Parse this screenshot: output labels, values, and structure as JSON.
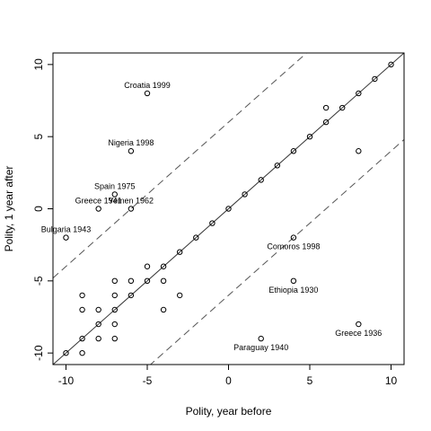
{
  "chart_data": {
    "type": "scatter",
    "title": "",
    "xlabel": "Polity, year before",
    "ylabel": "Polity, 1 year after",
    "xlim": [
      -10.8,
      10.8
    ],
    "ylim": [
      -10.8,
      10.8
    ],
    "xticks": [
      -10,
      -5,
      0,
      5,
      10
    ],
    "yticks": [
      -10,
      -5,
      0,
      5,
      10
    ],
    "grid": false,
    "lines": [
      {
        "style": "solid",
        "intercept": 0,
        "slope": 1
      },
      {
        "style": "dashed",
        "intercept": 6,
        "slope": 1
      },
      {
        "style": "dashed",
        "intercept": -6,
        "slope": 1
      }
    ],
    "points": [
      {
        "x": -10,
        "y": -10
      },
      {
        "x": -9,
        "y": -9
      },
      {
        "x": -8,
        "y": -8
      },
      {
        "x": -7,
        "y": -7
      },
      {
        "x": -6,
        "y": -6
      },
      {
        "x": -5,
        "y": -5
      },
      {
        "x": -4,
        "y": -4
      },
      {
        "x": -3,
        "y": -3
      },
      {
        "x": -2,
        "y": -2
      },
      {
        "x": -1,
        "y": -1
      },
      {
        "x": 0,
        "y": 0
      },
      {
        "x": 1,
        "y": 1
      },
      {
        "x": 2,
        "y": 2
      },
      {
        "x": 3,
        "y": 3
      },
      {
        "x": 4,
        "y": 4
      },
      {
        "x": 5,
        "y": 5
      },
      {
        "x": 6,
        "y": 6
      },
      {
        "x": 7,
        "y": 7
      },
      {
        "x": 8,
        "y": 8
      },
      {
        "x": 9,
        "y": 9
      },
      {
        "x": 10,
        "y": 10
      },
      {
        "x": -9,
        "y": -6
      },
      {
        "x": -9,
        "y": -7
      },
      {
        "x": -9,
        "y": -10
      },
      {
        "x": -8,
        "y": -7
      },
      {
        "x": -8,
        "y": -9
      },
      {
        "x": -7,
        "y": -5
      },
      {
        "x": -7,
        "y": -6
      },
      {
        "x": -7,
        "y": -8
      },
      {
        "x": -7,
        "y": -9
      },
      {
        "x": -6,
        "y": -5
      },
      {
        "x": -5,
        "y": -4
      },
      {
        "x": -4,
        "y": -5
      },
      {
        "x": -4,
        "y": -7
      },
      {
        "x": -3,
        "y": -6
      },
      {
        "x": 6,
        "y": 7
      },
      {
        "x": 8,
        "y": 4
      },
      {
        "x": -5,
        "y": 8
      },
      {
        "x": -6,
        "y": 4
      },
      {
        "x": -7,
        "y": 1
      },
      {
        "x": -8,
        "y": 0
      },
      {
        "x": -6,
        "y": 0
      },
      {
        "x": -10,
        "y": -2
      },
      {
        "x": 4,
        "y": -2
      },
      {
        "x": 4,
        "y": -5
      },
      {
        "x": 2,
        "y": -9
      },
      {
        "x": 8,
        "y": -8
      }
    ],
    "annotations": [
      {
        "text": "Croatia 1999",
        "x": -5,
        "y": 8,
        "pos": "above"
      },
      {
        "text": "Nigeria 1998",
        "x": -6,
        "y": 4,
        "pos": "above"
      },
      {
        "text": "Spain 1975",
        "x": -7,
        "y": 1,
        "pos": "above"
      },
      {
        "text": "Greece 1941",
        "x": -8,
        "y": 0,
        "pos": "above"
      },
      {
        "text": "Yemen 1962",
        "x": -6,
        "y": 0,
        "pos": "above"
      },
      {
        "text": "Bulgaria 1943",
        "x": -10,
        "y": -2,
        "pos": "above"
      },
      {
        "text": "Comoros 1998",
        "x": 4,
        "y": -2,
        "pos": "below"
      },
      {
        "text": "Ethiopia 1930",
        "x": 4,
        "y": -5,
        "pos": "below"
      },
      {
        "text": "Paraguay 1940",
        "x": 2,
        "y": -9,
        "pos": "below"
      },
      {
        "text": "Greece 1936",
        "x": 8,
        "y": -8,
        "pos": "below"
      }
    ]
  }
}
